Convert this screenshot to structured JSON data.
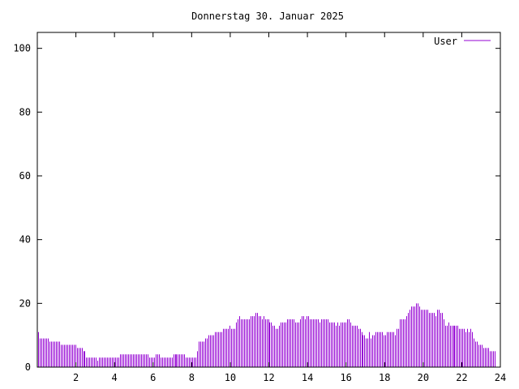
{
  "chart_data": {
    "type": "bar",
    "style": "impulses",
    "title": "Donnerstag 30. Januar 2025",
    "xlabel": "",
    "ylabel": "",
    "xlim": [
      0,
      24
    ],
    "ylim": [
      0,
      105
    ],
    "xticks": [
      2,
      4,
      6,
      8,
      10,
      12,
      14,
      16,
      18,
      20,
      22,
      24
    ],
    "yticks": [
      0,
      20,
      40,
      60,
      80,
      100
    ],
    "grid": false,
    "legend_position": "top-right",
    "interval_minutes": 5,
    "series": [
      {
        "name": "User",
        "color": "#9400d3",
        "values": [
          11,
          9,
          9,
          9,
          9,
          9,
          9,
          8,
          8,
          8,
          8,
          8,
          8,
          8,
          7,
          7,
          7,
          7,
          7,
          7,
          7,
          7,
          7,
          7,
          6,
          6,
          6,
          6,
          5,
          5,
          3,
          3,
          3,
          3,
          3,
          3,
          3,
          2,
          3,
          3,
          3,
          3,
          3,
          3,
          3,
          3,
          3,
          3,
          3,
          3,
          3,
          4,
          4,
          4,
          4,
          4,
          4,
          4,
          4,
          4,
          4,
          4,
          4,
          4,
          4,
          4,
          4,
          4,
          4,
          3,
          3,
          3,
          3,
          4,
          4,
          4,
          3,
          3,
          3,
          3,
          3,
          3,
          3,
          3,
          4,
          4,
          4,
          4,
          4,
          4,
          4,
          4,
          3,
          3,
          3,
          3,
          3,
          3,
          3,
          5,
          8,
          8,
          8,
          8,
          9,
          9,
          10,
          10,
          10,
          10,
          11,
          11,
          11,
          11,
          11,
          12,
          12,
          12,
          12,
          13,
          12,
          12,
          12,
          14,
          15,
          16,
          15,
          15,
          15,
          15,
          15,
          15,
          16,
          16,
          16,
          17,
          17,
          16,
          16,
          15,
          16,
          15,
          15,
          15,
          14,
          14,
          13,
          13,
          12,
          12,
          13,
          14,
          14,
          14,
          14,
          15,
          15,
          15,
          15,
          15,
          14,
          14,
          14,
          15,
          16,
          16,
          15,
          16,
          16,
          15,
          15,
          15,
          15,
          15,
          15,
          14,
          15,
          15,
          15,
          15,
          15,
          14,
          14,
          14,
          14,
          13,
          14,
          13,
          14,
          14,
          14,
          14,
          15,
          15,
          14,
          13,
          13,
          13,
          13,
          12,
          12,
          11,
          10,
          10,
          9,
          9,
          11,
          9,
          10,
          10,
          11,
          11,
          11,
          11,
          11,
          10,
          10,
          11,
          11,
          11,
          11,
          11,
          10,
          12,
          12,
          15,
          15,
          15,
          15,
          16,
          17,
          18,
          19,
          19,
          19,
          20,
          20,
          19,
          18,
          18,
          18,
          18,
          18,
          17,
          17,
          17,
          17,
          16,
          18,
          18,
          17,
          17,
          15,
          13,
          13,
          14,
          13,
          13,
          13,
          13,
          13,
          13,
          12,
          12,
          12,
          12,
          11,
          12,
          11,
          12,
          11,
          9,
          8,
          8,
          7,
          7,
          7,
          6,
          6,
          6,
          6,
          5,
          5,
          5,
          5
        ]
      }
    ]
  }
}
